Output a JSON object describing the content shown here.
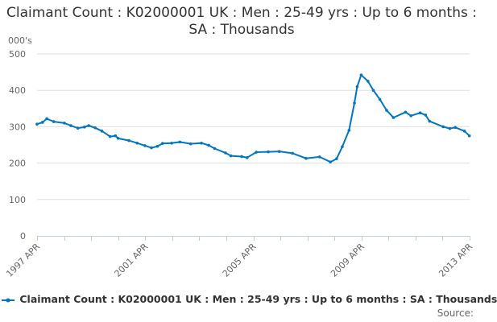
{
  "chart_data": {
    "type": "line",
    "title": "Claimant Count : K02000001 UK : Men : 25-49 yrs : Up to 6 months : SA : Thousands",
    "ylabel": "000's",
    "xlabel": "",
    "ylim": [
      0,
      500
    ],
    "yticks": [
      0,
      100,
      200,
      300,
      400,
      500
    ],
    "xlim": [
      1997.25,
      2013.25
    ],
    "xtick_labels": [
      {
        "x": 1997.25,
        "label": "1997 APR"
      },
      {
        "x": 2001.25,
        "label": "2001 APR"
      },
      {
        "x": 2005.25,
        "label": "2005 APR"
      },
      {
        "x": 2009.25,
        "label": "2009 APR"
      },
      {
        "x": 2013.25,
        "label": "2013 APR"
      }
    ],
    "grid": true,
    "legend": "bottom",
    "series": [
      {
        "name": "Claimant Count : K02000001 UK : Men : 25-49 yrs : Up to 6 months : SA : Thousands",
        "color": "#0077c0",
        "x": [
          1997.25,
          1997.45,
          1997.61,
          1997.87,
          1998.26,
          1998.5,
          1998.76,
          1999.0,
          1999.16,
          1999.4,
          1999.65,
          1999.95,
          2000.15,
          2000.25,
          2000.65,
          2000.95,
          2001.24,
          2001.48,
          2001.7,
          2001.89,
          2002.23,
          2002.53,
          2002.93,
          2003.33,
          2003.6,
          2003.82,
          2004.22,
          2004.42,
          2004.82,
          2005.02,
          2005.36,
          2005.8,
          2006.21,
          2006.7,
          2007.2,
          2007.7,
          2008.1,
          2008.33,
          2008.54,
          2008.79,
          2008.99,
          2009.09,
          2009.24,
          2009.49,
          2009.69,
          2009.93,
          2010.18,
          2010.43,
          2010.88,
          2011.08,
          2011.42,
          2011.62,
          2011.77,
          2012.27,
          2012.52,
          2012.72,
          2013.06,
          2013.24
        ],
        "values": [
          307,
          312,
          322,
          314,
          310,
          303,
          296,
          299,
          303,
          297,
          288,
          273,
          275,
          268,
          262,
          255,
          248,
          242,
          246,
          254,
          255,
          258,
          253,
          255,
          249,
          240,
          228,
          220,
          218,
          215,
          230,
          231,
          232,
          227,
          213,
          217,
          203,
          212,
          245,
          290,
          365,
          410,
          442,
          425,
          400,
          375,
          345,
          325,
          340,
          330,
          338,
          332,
          315,
          300,
          295,
          298,
          288,
          275
        ]
      }
    ],
    "source_label": "Source:"
  }
}
